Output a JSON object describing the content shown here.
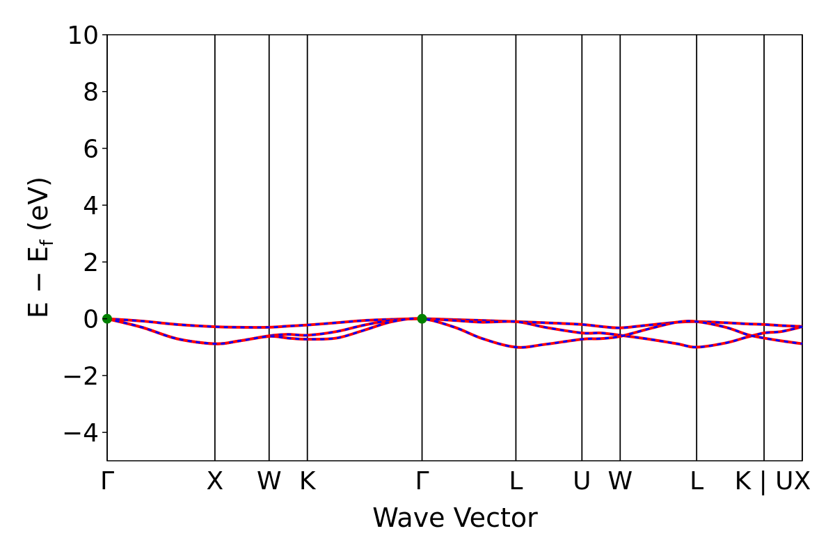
{
  "chart_data": {
    "type": "line",
    "title": "",
    "xlabel": "Wave Vector",
    "ylabel_main": "E − E",
    "ylabel_sub": "f",
    "ylabel_unit": " (eV)",
    "ylim": [
      -5,
      10
    ],
    "yticks": [
      -4,
      -2,
      0,
      2,
      4,
      6,
      8,
      10
    ],
    "ytick_labels": [
      "−4",
      "−2",
      "0",
      "2",
      "4",
      "6",
      "8",
      "10"
    ],
    "xlim": [
      0,
      10
    ],
    "kpoints": [
      {
        "label": "Γ",
        "x": 0
      },
      {
        "label": "X",
        "x": 1.55
      },
      {
        "label": "W",
        "x": 2.33
      },
      {
        "label": "K",
        "x": 2.88
      },
      {
        "label": "Γ",
        "x": 4.53
      },
      {
        "label": "L",
        "x": 5.88
      },
      {
        "label": "U",
        "x": 6.83
      },
      {
        "label": "W",
        "x": 7.38
      },
      {
        "label": "L",
        "x": 8.48
      },
      {
        "label": "K | U",
        "x": 9.45
      },
      {
        "label": "X",
        "x": 10
      }
    ],
    "series": [
      {
        "x": [
          0,
          0.5,
          1.0,
          1.55,
          1.9,
          2.33,
          2.6,
          2.88,
          3.3,
          3.7,
          4.1,
          4.53,
          5.0,
          5.4,
          5.88,
          6.3,
          6.83,
          7.1,
          7.38,
          7.8,
          8.2,
          8.48,
          8.9,
          9.2,
          9.45,
          9.7,
          10
        ],
        "y": [
          0,
          -0.08,
          -0.2,
          -0.28,
          -0.3,
          -0.3,
          -0.26,
          -0.22,
          -0.14,
          -0.06,
          -0.02,
          0,
          -0.03,
          -0.06,
          -0.1,
          -0.14,
          -0.2,
          -0.27,
          -0.32,
          -0.22,
          -0.12,
          -0.1,
          -0.14,
          -0.18,
          -0.2,
          -0.24,
          -0.27
        ]
      },
      {
        "x": [
          0,
          0.5,
          1.0,
          1.55,
          1.9,
          2.33,
          2.6,
          2.88,
          3.3,
          3.7,
          4.1,
          4.53,
          5.0,
          5.4,
          5.88,
          6.3,
          6.83,
          7.1,
          7.38,
          7.8,
          8.2,
          8.48,
          8.9,
          9.2,
          9.45,
          9.7,
          10
        ],
        "y": [
          0,
          -0.3,
          -0.7,
          -0.88,
          -0.78,
          -0.6,
          -0.55,
          -0.58,
          -0.45,
          -0.22,
          -0.05,
          0,
          -0.06,
          -0.12,
          -0.1,
          -0.3,
          -0.5,
          -0.5,
          -0.58,
          -0.72,
          -0.88,
          -1.0,
          -0.85,
          -0.65,
          -0.5,
          -0.45,
          -0.28
        ]
      },
      {
        "x": [
          0,
          0.5,
          1.0,
          1.55,
          1.9,
          2.33,
          2.6,
          2.88,
          3.3,
          3.7,
          4.1,
          4.53,
          5.0,
          5.4,
          5.88,
          6.3,
          6.83,
          7.1,
          7.38,
          7.8,
          8.2,
          8.48,
          8.9,
          9.2,
          9.45,
          9.7,
          10
        ],
        "y": [
          0,
          -0.3,
          -0.7,
          -0.88,
          -0.78,
          -0.62,
          -0.68,
          -0.72,
          -0.68,
          -0.4,
          -0.1,
          0,
          -0.3,
          -0.7,
          -1.0,
          -0.9,
          -0.72,
          -0.7,
          -0.62,
          -0.35,
          -0.12,
          -0.1,
          -0.3,
          -0.55,
          -0.68,
          -0.78,
          -0.88
        ]
      }
    ],
    "band_color_solid": "#ff0000",
    "band_color_dash": "#0000ff",
    "markers": [
      {
        "x": 0,
        "y": 0
      },
      {
        "x": 4.53,
        "y": 0
      }
    ],
    "marker_color": "#008000",
    "grid": false,
    "legend": "none"
  }
}
